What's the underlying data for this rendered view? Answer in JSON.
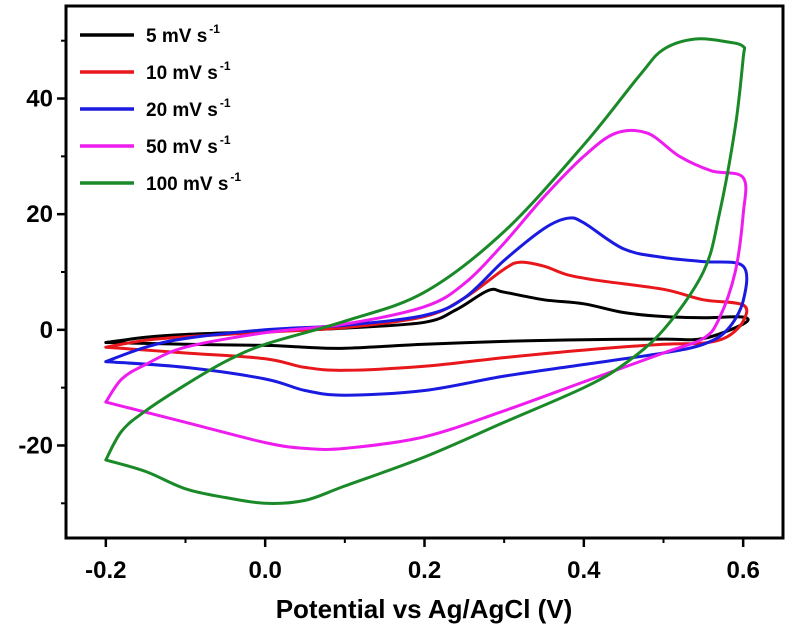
{
  "chart_data": {
    "type": "line",
    "title": "",
    "xlabel": "Potential vs Ag/AgCl (V)",
    "ylabel": "",
    "xlim": [
      -0.25,
      0.65
    ],
    "ylim": [
      -36,
      56
    ],
    "x_ticks": [
      -0.2,
      0.0,
      0.2,
      0.4,
      0.6
    ],
    "x_tick_labels": [
      "-0.2",
      "0.0",
      "0.2",
      "0.4",
      "0.6"
    ],
    "y_ticks": [
      -20,
      0,
      20,
      40
    ],
    "y_tick_labels": [
      "-20",
      "0",
      "20",
      "40"
    ],
    "grid": false,
    "legend_position": "top-left",
    "series": [
      {
        "name": "5 mV s",
        "name_superscript": "-1",
        "color": "#000000",
        "points": [
          [
            -0.2,
            -2.2
          ],
          [
            -0.15,
            -1.3
          ],
          [
            -0.1,
            -0.8
          ],
          [
            0.0,
            -0.3
          ],
          [
            0.1,
            0.3
          ],
          [
            0.2,
            1.3
          ],
          [
            0.24,
            3.5
          ],
          [
            0.28,
            6.8
          ],
          [
            0.3,
            6.5
          ],
          [
            0.35,
            5.2
          ],
          [
            0.4,
            4.5
          ],
          [
            0.45,
            3.0
          ],
          [
            0.5,
            2.3
          ],
          [
            0.55,
            2.1
          ],
          [
            0.6,
            2.2
          ],
          [
            0.6,
            1.0
          ],
          [
            0.55,
            -1.5
          ],
          [
            0.5,
            -1.6
          ],
          [
            0.4,
            -1.7
          ],
          [
            0.3,
            -2.0
          ],
          [
            0.2,
            -2.5
          ],
          [
            0.1,
            -3.2
          ],
          [
            0.05,
            -3.0
          ],
          [
            0.0,
            -2.7
          ],
          [
            -0.1,
            -2.5
          ],
          [
            -0.2,
            -2.2
          ]
        ]
      },
      {
        "name": "10 mV s",
        "name_superscript": "-1",
        "color": "#e8171c",
        "points": [
          [
            -0.2,
            -3.0
          ],
          [
            -0.15,
            -1.8
          ],
          [
            -0.1,
            -1.2
          ],
          [
            0.0,
            -0.4
          ],
          [
            0.1,
            0.4
          ],
          [
            0.2,
            2.3
          ],
          [
            0.25,
            5.5
          ],
          [
            0.3,
            10.5
          ],
          [
            0.32,
            11.7
          ],
          [
            0.35,
            11.0
          ],
          [
            0.38,
            9.5
          ],
          [
            0.42,
            8.5
          ],
          [
            0.5,
            7.0
          ],
          [
            0.55,
            5.2
          ],
          [
            0.6,
            4.3
          ],
          [
            0.6,
            1.5
          ],
          [
            0.58,
            -1.2
          ],
          [
            0.55,
            -2.3
          ],
          [
            0.5,
            -2.5
          ],
          [
            0.4,
            -3.5
          ],
          [
            0.3,
            -4.8
          ],
          [
            0.2,
            -6.3
          ],
          [
            0.1,
            -7.0
          ],
          [
            0.05,
            -6.5
          ],
          [
            0.0,
            -5.0
          ],
          [
            -0.1,
            -4.0
          ],
          [
            -0.2,
            -3.0
          ]
        ]
      },
      {
        "name": "20 mV s",
        "name_superscript": "-1",
        "color": "#1a1ae0",
        "points": [
          [
            -0.2,
            -5.5
          ],
          [
            -0.15,
            -3.0
          ],
          [
            -0.1,
            -1.5
          ],
          [
            0.0,
            0.0
          ],
          [
            0.1,
            0.8
          ],
          [
            0.2,
            2.5
          ],
          [
            0.25,
            5.5
          ],
          [
            0.3,
            12.0
          ],
          [
            0.35,
            17.5
          ],
          [
            0.38,
            19.3
          ],
          [
            0.4,
            18.5
          ],
          [
            0.45,
            14.0
          ],
          [
            0.5,
            12.5
          ],
          [
            0.55,
            11.8
          ],
          [
            0.6,
            11.0
          ],
          [
            0.6,
            5.0
          ],
          [
            0.58,
            0.0
          ],
          [
            0.55,
            -2.5
          ],
          [
            0.5,
            -4.0
          ],
          [
            0.4,
            -6.0
          ],
          [
            0.3,
            -8.0
          ],
          [
            0.2,
            -10.5
          ],
          [
            0.1,
            -11.3
          ],
          [
            0.05,
            -10.5
          ],
          [
            0.0,
            -8.5
          ],
          [
            -0.1,
            -6.5
          ],
          [
            -0.2,
            -5.5
          ]
        ]
      },
      {
        "name": "50 mV s",
        "name_superscript": "-1",
        "color": "#ee1cee",
        "points": [
          [
            -0.2,
            -12.5
          ],
          [
            -0.18,
            -8.5
          ],
          [
            -0.15,
            -6.0
          ],
          [
            -0.1,
            -3.0
          ],
          [
            0.0,
            -0.5
          ],
          [
            0.1,
            1.0
          ],
          [
            0.2,
            4.0
          ],
          [
            0.25,
            8.0
          ],
          [
            0.3,
            15.0
          ],
          [
            0.35,
            23.0
          ],
          [
            0.4,
            30.0
          ],
          [
            0.44,
            34.0
          ],
          [
            0.48,
            34.0
          ],
          [
            0.52,
            30.0
          ],
          [
            0.56,
            27.5
          ],
          [
            0.6,
            26.3
          ],
          [
            0.6,
            20.0
          ],
          [
            0.59,
            10.0
          ],
          [
            0.57,
            2.0
          ],
          [
            0.55,
            -1.5
          ],
          [
            0.5,
            -4.0
          ],
          [
            0.4,
            -9.0
          ],
          [
            0.3,
            -14.0
          ],
          [
            0.2,
            -18.5
          ],
          [
            0.1,
            -20.5
          ],
          [
            0.05,
            -20.5
          ],
          [
            0.0,
            -19.5
          ],
          [
            -0.1,
            -16.0
          ],
          [
            -0.2,
            -12.5
          ]
        ]
      },
      {
        "name": "100 mV s",
        "name_superscript": "-1",
        "color": "#1a8a28",
        "points": [
          [
            -0.2,
            -22.5
          ],
          [
            -0.18,
            -17.5
          ],
          [
            -0.15,
            -14.0
          ],
          [
            -0.1,
            -9.5
          ],
          [
            -0.05,
            -5.5
          ],
          [
            0.0,
            -2.5
          ],
          [
            0.1,
            1.5
          ],
          [
            0.2,
            6.5
          ],
          [
            0.3,
            17.0
          ],
          [
            0.4,
            32.0
          ],
          [
            0.47,
            44.0
          ],
          [
            0.5,
            48.5
          ],
          [
            0.54,
            50.3
          ],
          [
            0.58,
            49.8
          ],
          [
            0.6,
            49.0
          ],
          [
            0.6,
            47.0
          ],
          [
            0.59,
            35.0
          ],
          [
            0.57,
            20.0
          ],
          [
            0.55,
            10.0
          ],
          [
            0.5,
            0.0
          ],
          [
            0.45,
            -6.0
          ],
          [
            0.4,
            -10.0
          ],
          [
            0.3,
            -16.0
          ],
          [
            0.2,
            -22.0
          ],
          [
            0.1,
            -27.0
          ],
          [
            0.05,
            -29.5
          ],
          [
            0.0,
            -30.0
          ],
          [
            -0.05,
            -29.0
          ],
          [
            -0.1,
            -27.5
          ],
          [
            -0.15,
            -24.5
          ],
          [
            -0.2,
            -22.5
          ]
        ]
      }
    ]
  }
}
